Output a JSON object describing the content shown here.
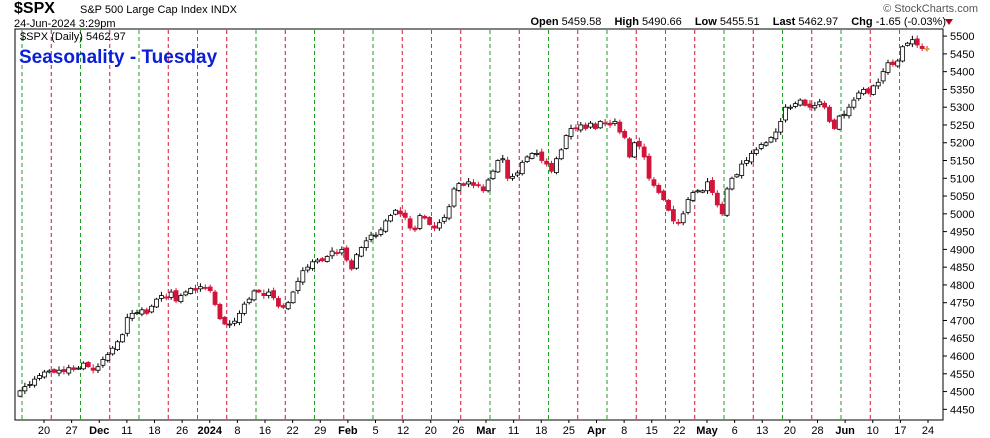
{
  "header": {
    "symbol": "$SPX",
    "name": "S&P 500 Large Cap Index",
    "exchange": "INDX",
    "datetime": "24-Jun-2024 3:29pm",
    "brand": "© StockCharts.com"
  },
  "quote": {
    "open_label": "Open",
    "open": "5459.58",
    "high_label": "High",
    "high": "5490.66",
    "low_label": "Low",
    "low": "5455.51",
    "last_label": "Last",
    "last": "5462.97",
    "chg_label": "Chg",
    "chg": "-1.65 (-0.03%)"
  },
  "colors": {
    "up": "#ffffff",
    "down": "#d2143a",
    "today": "#f7e34a",
    "green_line": "#1f9e1f",
    "red_line": "#d2143a",
    "title": "#0a1fd6"
  },
  "chart_data": {
    "type": "candlestick",
    "legend": "$SPX (Daily) 5462.97",
    "title": "Seasonality - Tuesday",
    "ylim": [
      4420,
      5520
    ],
    "y_ticks": [
      4450,
      4500,
      4550,
      4600,
      4650,
      4700,
      4750,
      4800,
      4850,
      4900,
      4950,
      5000,
      5050,
      5100,
      5150,
      5200,
      5250,
      5300,
      5350,
      5400,
      5450,
      5500
    ],
    "x_labels": [
      "20",
      "27",
      "Dec",
      "11",
      "18",
      "26",
      "2024",
      "8",
      "16",
      "22",
      "29",
      "Feb",
      "5",
      "12",
      "20",
      "26",
      "Mar",
      "11",
      "18",
      "25",
      "Apr",
      "8",
      "15",
      "22",
      "May",
      "6",
      "13",
      "20",
      "28",
      "Jun",
      "10",
      "17",
      "24"
    ],
    "x_labels_bold": [
      "Dec",
      "2024",
      "Feb",
      "Mar",
      "Apr",
      "May",
      "Jun"
    ],
    "vlines": "alternating green/red dashed verticals at each weekly Tuesday",
    "closes": [
      4502,
      4514,
      4520,
      4535,
      4545,
      4555,
      4558,
      4554,
      4560,
      4556,
      4567,
      4562,
      4566,
      4580,
      4570,
      4560,
      4570,
      4590,
      4604,
      4622,
      4640,
      4660,
      4708,
      4720,
      4722,
      4730,
      4720,
      4740,
      4760,
      4770,
      4765,
      4780,
      4755,
      4770,
      4780,
      4790,
      4785,
      4795,
      4792,
      4784,
      4745,
      4705,
      4690,
      4690,
      4698,
      4720,
      4746,
      4760,
      4783,
      4780,
      4770,
      4780,
      4764,
      4740,
      4737,
      4750,
      4780,
      4810,
      4840,
      4850,
      4865,
      4870,
      4868,
      4880,
      4895,
      4890,
      4900,
      4870,
      4845,
      4885,
      4905,
      4924,
      4940,
      4940,
      4955,
      4980,
      4995,
      5010,
      5000,
      4990,
      4960,
      4955,
      4995,
      4988,
      4970,
      4960,
      4975,
      4990,
      5020,
      5070,
      5085,
      5080,
      5090,
      5080,
      5080,
      5065,
      5095,
      5120,
      5150,
      5155,
      5100,
      5105,
      5115,
      5145,
      5160,
      5170,
      5170,
      5150,
      5140,
      5120,
      5155,
      5180,
      5220,
      5240,
      5240,
      5250,
      5240,
      5255,
      5240,
      5260,
      5255,
      5250,
      5260,
      5230,
      5215,
      5160,
      5200,
      5190,
      5160,
      5100,
      5080,
      5060,
      5040,
      5010,
      4980,
      4975,
      5000,
      5040,
      5060,
      5065,
      5065,
      5090,
      5060,
      5025,
      5000,
      5070,
      5100,
      5110,
      5140,
      5150,
      5170,
      5180,
      5195,
      5200,
      5215,
      5230,
      5260,
      5300,
      5300,
      5310,
      5320,
      5305,
      5300,
      5305,
      5315,
      5300,
      5260,
      5240,
      5275,
      5280,
      5300,
      5320,
      5340,
      5350,
      5340,
      5360,
      5370,
      5400,
      5425,
      5420,
      5430,
      5470,
      5480,
      5490,
      5475,
      5465,
      5462.97
    ]
  }
}
